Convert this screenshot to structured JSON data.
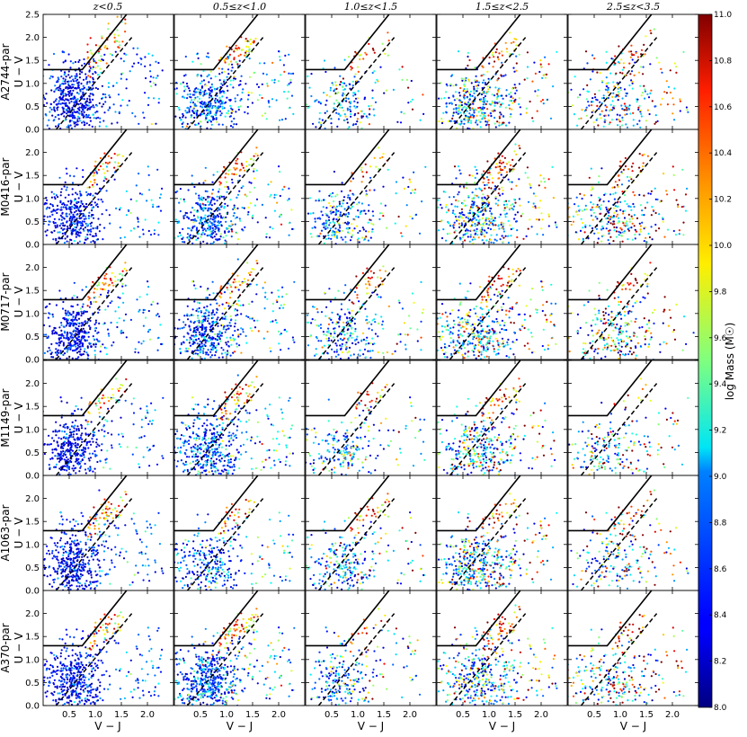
{
  "chart_data": {
    "type": "scatter",
    "layout": "6 rows x 5 columns grid of UVJ colour-colour diagrams, shared axes",
    "column_titles": [
      "z<0.5",
      "0.5≤z<1.0",
      "1.0≤z<1.5",
      "1.5≤z<2.5",
      "2.5≤z<3.5"
    ],
    "row_labels": [
      "A2744-par",
      "M0416-par",
      "M0717-par",
      "M1149-par",
      "A1063-par",
      "A370-par"
    ],
    "xlabel": "V − J",
    "ylabel": "U − V",
    "xlim": [
      0.0,
      2.5
    ],
    "ylim": [
      0.0,
      2.5
    ],
    "xticks": [
      0.5,
      1.0,
      1.5,
      2.0
    ],
    "xtick_labels": [
      "0.5",
      "1.0",
      "1.5",
      "2.0"
    ],
    "yticks": [
      0.0,
      0.5,
      1.0,
      1.5,
      2.0,
      2.5
    ],
    "ytick_labels": [
      "0.0",
      "0.5",
      "1.0",
      "1.5",
      "2.0",
      "2.5"
    ],
    "quiescent_boundary": {
      "style": "solid black",
      "points": [
        [
          0.0,
          1.3
        ],
        [
          0.75,
          1.3
        ],
        [
          1.6,
          2.5
        ]
      ]
    },
    "reference_line": {
      "style": "dashed black",
      "points": [
        [
          0.25,
          0.0
        ],
        [
          1.7,
          2.0
        ]
      ]
    },
    "colorbar": {
      "label": "log Mass (M☉)",
      "range": [
        8.0,
        11.0
      ],
      "ticks": [
        8.0,
        8.2,
        8.4,
        8.6,
        8.8,
        9.0,
        9.2,
        9.4,
        9.6,
        9.8,
        10.0,
        10.2,
        10.4,
        10.6,
        10.8,
        11.0
      ],
      "tick_labels": [
        "8.0",
        "8.2",
        "8.4",
        "8.6",
        "8.8",
        "9.0",
        "9.2",
        "9.4",
        "9.6",
        "9.8",
        "10.0",
        "10.2",
        "10.4",
        "10.6",
        "10.8",
        "11.0"
      ],
      "colormap": "jet"
    },
    "points_per_panel_approx": [
      [
        600,
        520,
        230,
        480,
        300
      ],
      [
        500,
        480,
        300,
        520,
        340
      ],
      [
        520,
        520,
        330,
        460,
        300
      ],
      [
        460,
        560,
        250,
        420,
        210
      ],
      [
        560,
        360,
        300,
        480,
        240
      ],
      [
        560,
        640,
        270,
        480,
        300
      ]
    ],
    "grid": false
  }
}
